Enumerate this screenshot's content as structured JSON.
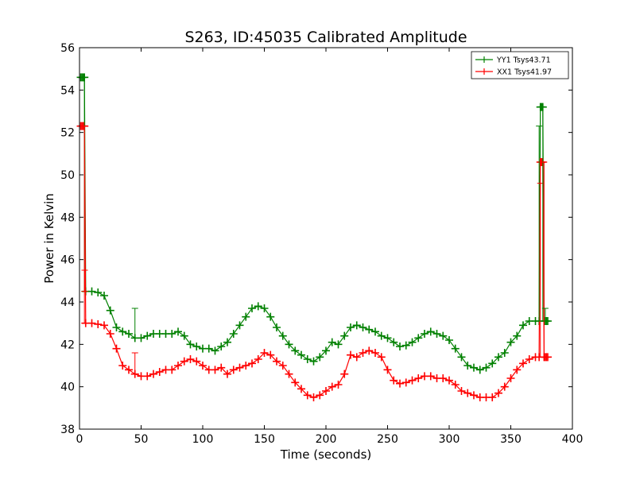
{
  "chart_data": {
    "type": "line",
    "title": "S263, ID:45035 Calibrated Amplitude",
    "xlabel": "Time (seconds)",
    "ylabel": "Power in Kelvin",
    "xlim": [
      0,
      400
    ],
    "ylim": [
      38,
      56
    ],
    "xticks": [
      0,
      50,
      100,
      150,
      200,
      250,
      300,
      350,
      400
    ],
    "yticks": [
      38,
      40,
      42,
      44,
      46,
      48,
      50,
      52,
      54,
      56
    ],
    "xtick_labels": [
      "0",
      "50",
      "100",
      "150",
      "200",
      "250",
      "300",
      "350",
      "400"
    ],
    "ytick_labels": [
      "38",
      "40",
      "42",
      "44",
      "46",
      "48",
      "50",
      "52",
      "54",
      "56"
    ],
    "grid": false,
    "legend_position": "top-right",
    "series": [
      {
        "name": "YY1 Tsys43.71",
        "color": "#008000",
        "x": [
          1,
          2,
          3,
          4,
          5,
          10,
          15,
          20,
          25,
          30,
          35,
          40,
          45,
          50,
          55,
          60,
          65,
          70,
          75,
          80,
          85,
          90,
          95,
          100,
          105,
          110,
          115,
          120,
          125,
          130,
          135,
          140,
          145,
          150,
          155,
          160,
          165,
          170,
          175,
          180,
          185,
          190,
          195,
          200,
          205,
          210,
          215,
          220,
          225,
          230,
          235,
          240,
          245,
          250,
          255,
          260,
          265,
          270,
          275,
          280,
          285,
          290,
          295,
          300,
          305,
          310,
          315,
          320,
          325,
          330,
          335,
          340,
          345,
          350,
          355,
          360,
          365,
          370,
          373,
          374,
          375,
          376,
          377,
          378,
          379,
          380
        ],
        "y": [
          54.6,
          54.6,
          54.6,
          54.6,
          44.5,
          44.5,
          44.45,
          44.3,
          43.6,
          42.8,
          42.6,
          42.5,
          42.3,
          42.3,
          42.4,
          42.5,
          42.5,
          42.5,
          42.5,
          42.6,
          42.4,
          42.0,
          41.9,
          41.8,
          41.8,
          41.7,
          41.9,
          42.1,
          42.5,
          42.9,
          43.3,
          43.7,
          43.8,
          43.7,
          43.3,
          42.8,
          42.4,
          42.0,
          41.7,
          41.5,
          41.3,
          41.2,
          41.4,
          41.7,
          42.1,
          42.0,
          42.4,
          42.8,
          42.9,
          42.8,
          42.7,
          42.6,
          42.4,
          42.3,
          42.1,
          41.9,
          41.95,
          42.1,
          42.3,
          42.5,
          42.6,
          42.5,
          42.4,
          42.2,
          41.8,
          41.4,
          41.0,
          40.9,
          40.8,
          40.9,
          41.1,
          41.4,
          41.6,
          42.1,
          42.4,
          42.9,
          43.1,
          43.1,
          43.1,
          53.2,
          53.2,
          53.2,
          43.1,
          43.1,
          43.1,
          43.1
        ]
      },
      {
        "name": "XX1 Tsys41.97",
        "color": "#ff0000",
        "x": [
          1,
          2,
          3,
          4,
          5,
          10,
          15,
          20,
          25,
          30,
          35,
          40,
          45,
          50,
          55,
          60,
          65,
          70,
          75,
          80,
          85,
          90,
          95,
          100,
          105,
          110,
          115,
          120,
          125,
          130,
          135,
          140,
          145,
          150,
          155,
          160,
          165,
          170,
          175,
          180,
          185,
          190,
          195,
          200,
          205,
          210,
          215,
          220,
          225,
          230,
          235,
          240,
          245,
          250,
          255,
          260,
          265,
          270,
          275,
          280,
          285,
          290,
          295,
          300,
          305,
          310,
          315,
          320,
          325,
          330,
          335,
          340,
          345,
          350,
          355,
          360,
          365,
          370,
          373,
          374,
          375,
          376,
          377,
          378,
          379,
          380
        ],
        "y": [
          52.3,
          52.3,
          52.3,
          52.3,
          43.0,
          43.0,
          42.95,
          42.9,
          42.5,
          41.8,
          41.0,
          40.8,
          40.6,
          40.5,
          40.5,
          40.6,
          40.7,
          40.8,
          40.8,
          41.0,
          41.2,
          41.3,
          41.2,
          41.0,
          40.8,
          40.8,
          40.9,
          40.6,
          40.8,
          40.9,
          41.0,
          41.1,
          41.3,
          41.6,
          41.5,
          41.2,
          41.0,
          40.6,
          40.2,
          39.9,
          39.6,
          39.5,
          39.6,
          39.8,
          40.0,
          40.1,
          40.6,
          41.5,
          41.4,
          41.6,
          41.7,
          41.6,
          41.4,
          40.8,
          40.3,
          40.15,
          40.2,
          40.3,
          40.4,
          40.5,
          40.5,
          40.4,
          40.4,
          40.3,
          40.1,
          39.8,
          39.7,
          39.6,
          39.5,
          39.5,
          39.5,
          39.7,
          40.0,
          40.4,
          40.8,
          41.1,
          41.3,
          41.4,
          41.4,
          50.6,
          50.6,
          50.6,
          41.4,
          41.4,
          41.4,
          41.4
        ]
      }
    ],
    "error_bars": [
      {
        "series": 0,
        "x": 4,
        "lo": 44.5,
        "hi": 54.6
      },
      {
        "series": 1,
        "x": 4,
        "lo": 43.0,
        "hi": 52.3
      },
      {
        "series": 1,
        "x": 4.2,
        "lo": 44.5,
        "hi": 45.5
      },
      {
        "series": 0,
        "x": 45,
        "lo": 42.3,
        "hi": 43.7
      },
      {
        "series": 1,
        "x": 45,
        "lo": 40.6,
        "hi": 41.6
      },
      {
        "series": 0,
        "x": 373,
        "lo": 43.1,
        "hi": 52.3
      },
      {
        "series": 1,
        "x": 374,
        "lo": 41.4,
        "hi": 49.6
      },
      {
        "series": 0,
        "x": 376,
        "lo": 43.1,
        "hi": 53.2
      },
      {
        "series": 1,
        "x": 377,
        "lo": 41.4,
        "hi": 50.6
      },
      {
        "series": 0,
        "x": 378,
        "lo": 43.1,
        "hi": 43.7
      }
    ]
  }
}
